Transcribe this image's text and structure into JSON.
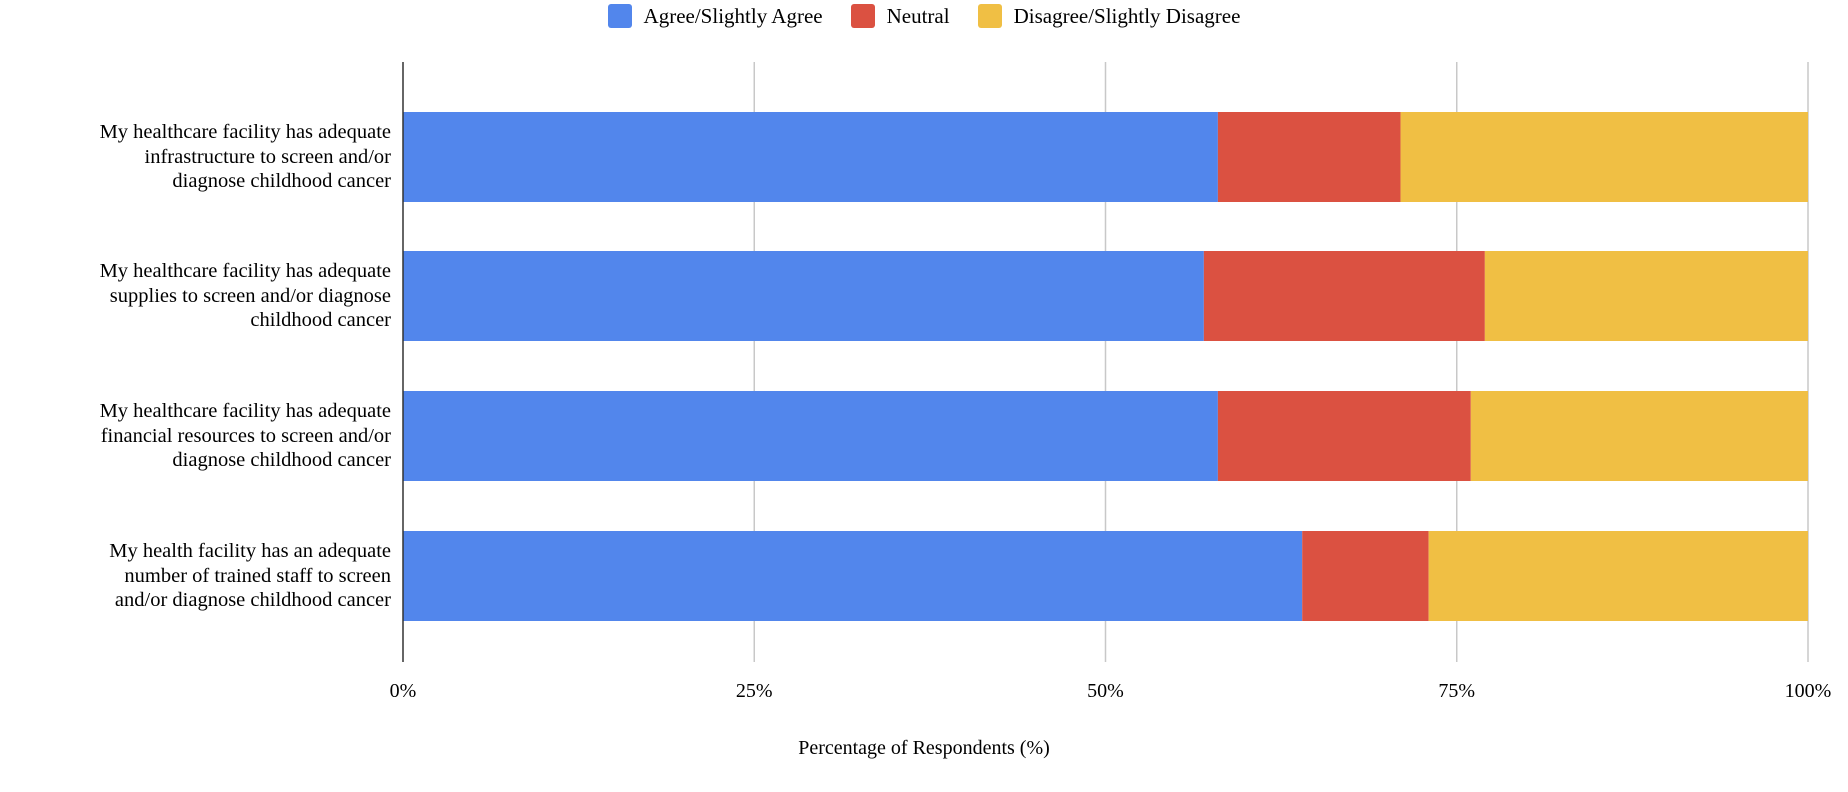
{
  "chart_data": {
    "type": "bar",
    "orientation": "horizontal",
    "stacked": true,
    "categories": [
      "My healthcare facility has adequate infrastructure to screen and/or diagnose childhood cancer",
      "My healthcare facility has adequate supplies to screen and/or diagnose childhood cancer",
      "My healthcare facility has adequate financial resources to screen and/or diagnose childhood cancer",
      "My health facility has an adequate number of trained staff to screen and/or diagnose childhood cancer"
    ],
    "category_lines": [
      [
        "My healthcare facility has adequate",
        "infrastructure to screen and/or",
        "diagnose childhood cancer"
      ],
      [
        "My healthcare facility has adequate",
        "supplies to screen and/or diagnose",
        "childhood cancer"
      ],
      [
        "My healthcare facility has adequate",
        "financial resources to screen and/or",
        "diagnose childhood cancer"
      ],
      [
        "My health facility has an adequate",
        "number of trained staff to screen",
        "and/or diagnose childhood cancer"
      ]
    ],
    "series": [
      {
        "name": "Agree/Slightly Agree",
        "color": "#5286ec",
        "values": [
          58,
          57,
          58,
          64
        ]
      },
      {
        "name": "Neutral",
        "color": "#db5141",
        "values": [
          13,
          20,
          18,
          9
        ]
      },
      {
        "name": "Disagree/Slightly Disagree",
        "color": "#f0bf44",
        "values": [
          29,
          23,
          24,
          27
        ]
      }
    ],
    "xlabel": "Percentage of Respondents (%)",
    "xlim": [
      0,
      100
    ],
    "xticks": [
      0,
      25,
      50,
      75,
      100
    ],
    "xtick_labels": [
      "0%",
      "25%",
      "50%",
      "75%",
      "100%"
    ],
    "grid": "vertical",
    "legend_position": "top-center"
  }
}
